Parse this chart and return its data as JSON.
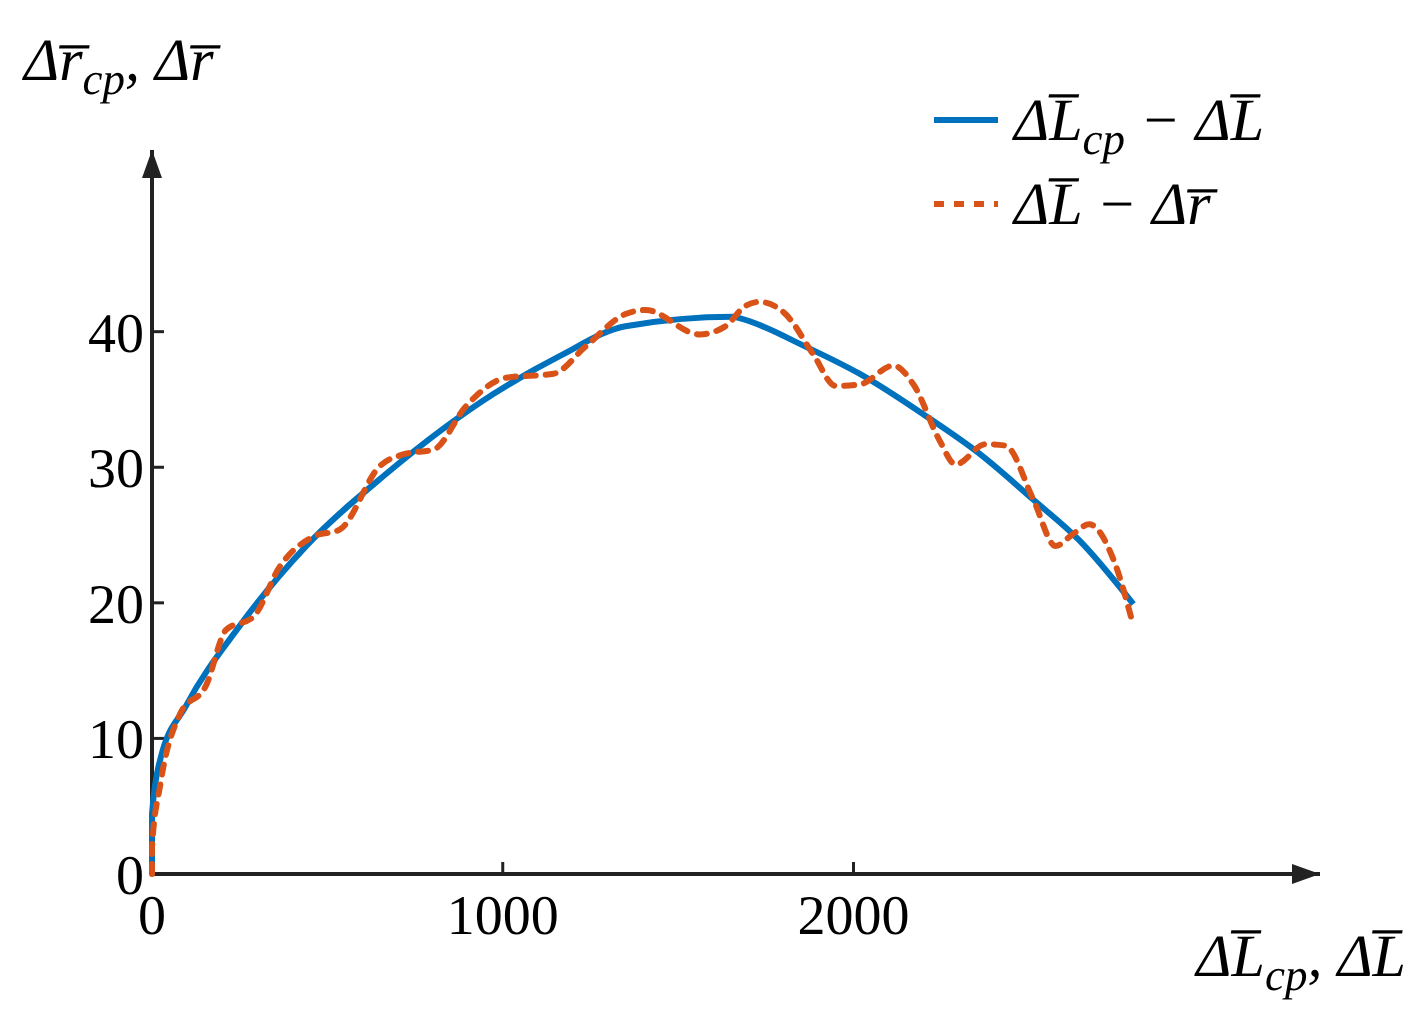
{
  "chart_data": {
    "type": "line",
    "xlabel": "ΔL̅$_{cp}$, ΔL̅",
    "ylabel": "Δr̅$_{cp}$, Δr̅",
    "xlim": [
      0,
      3330
    ],
    "ylim": [
      0,
      53.4
    ],
    "xticks": [
      0,
      1000,
      2000
    ],
    "yticks": [
      0,
      10,
      20,
      30,
      40
    ],
    "grid": false,
    "legend": "top right",
    "series": [
      {
        "name": "ΔL̅$_{cp}$ − ΔL̅",
        "color": "#0072bd",
        "line_style": "solid",
        "x": [
          0,
          0,
          23,
          97,
          250,
          440,
          667,
          973,
          1162,
          1350,
          1658,
          1675,
          1863,
          2017,
          2205,
          2359,
          2513,
          2644,
          2798
        ],
        "values": [
          0,
          4.4,
          8.4,
          12.4,
          18.3,
          24.2,
          29.5,
          35.4,
          38.2,
          40.4,
          41.1,
          41.0,
          38.9,
          36.9,
          33.8,
          31.0,
          27.6,
          24.6,
          19.9
        ]
      },
      {
        "name": "ΔL̅ − Δr̅",
        "color": "#d95319",
        "line_style": "dotted",
        "x": [
          0,
          0,
          23,
          80,
          154,
          211,
          290,
          365,
          461,
          535,
          650,
          724,
          803,
          895,
          1009,
          1145,
          1236,
          1350,
          1407,
          1561,
          1635,
          1692,
          1732,
          1806,
          1886,
          1949,
          2017,
          2114,
          2171,
          2245,
          2291,
          2376,
          2433,
          2513,
          2576,
          2627,
          2672,
          2741,
          2798
        ],
        "values": [
          0,
          2,
          6.5,
          11.8,
          13.9,
          18,
          19,
          22.7,
          24.9,
          25.4,
          30.1,
          31,
          31.3,
          34.5,
          36.6,
          36.9,
          38.9,
          41.3,
          41.6,
          39.8,
          40.4,
          41.9,
          42.2,
          41.3,
          38.3,
          36,
          36.1,
          37.5,
          36.1,
          32,
          30.2,
          31.7,
          31.6,
          27.6,
          24.2,
          25.1,
          25.8,
          23.2,
          18.3
        ]
      }
    ]
  }
}
